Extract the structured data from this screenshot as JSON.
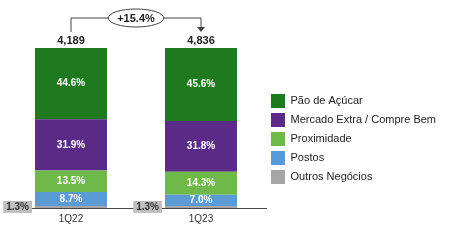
{
  "chart_data": {
    "type": "bar",
    "stacked": true,
    "data_labels": true,
    "legend": "right",
    "grid": false,
    "tick_labels": "x",
    "categories": [
      "1Q22",
      "1Q23"
    ],
    "ylim": [
      0,
      100
    ],
    "yticks": [
      0,
      100
    ],
    "series": [
      {
        "name": "Pão de Açúcar",
        "color": "#1f7a1f",
        "values": [
          44.6,
          45.6
        ],
        "value_labels": [
          "44.6%",
          "45.6%"
        ]
      },
      {
        "name": "Mercado Extra / Compre Bem",
        "color": "#5b2a86",
        "values": [
          31.9,
          31.8
        ],
        "value_labels": [
          "31.9%",
          "31.8%"
        ]
      },
      {
        "name": "Proximidade",
        "color": "#6fb94a",
        "values": [
          13.5,
          14.3
        ],
        "value_labels": [
          "13.5%",
          "14.3%"
        ]
      },
      {
        "name": "Postos",
        "color": "#5b9bd5",
        "values": [
          8.7,
          7.0
        ],
        "value_labels": [
          "8.7%",
          "7.0%"
        ]
      },
      {
        "name": "Outros Negócios",
        "color": "#a6a6a6",
        "values": [
          1.3,
          1.3
        ],
        "value_labels": [
          "1.3%",
          "1.3%"
        ]
      }
    ],
    "annotations": {
      "totals": [
        "4,189",
        "4,836"
      ],
      "growth": "+15.4%"
    }
  }
}
